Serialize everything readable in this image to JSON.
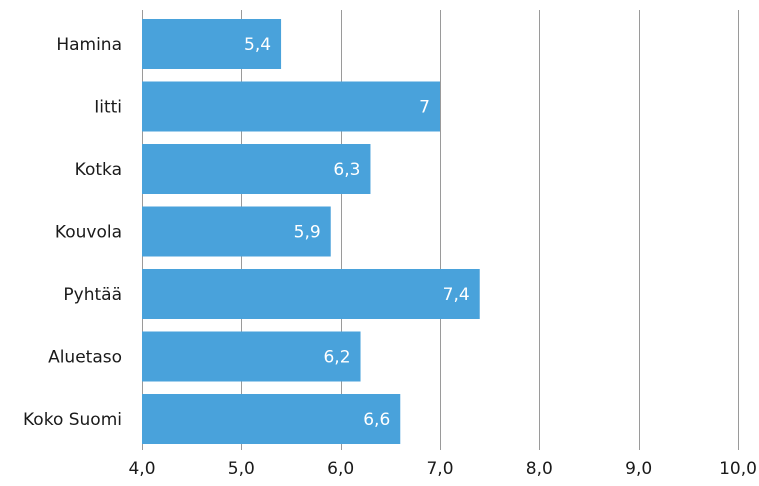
{
  "chart_data": {
    "type": "bar",
    "orientation": "horizontal",
    "categories": [
      "Hamina",
      "Iitti",
      "Kotka",
      "Kouvola",
      "Pyhtää",
      "Aluetaso",
      "Koko Suomi"
    ],
    "values": [
      5.4,
      7,
      6.3,
      5.9,
      7.4,
      6.2,
      6.6
    ],
    "value_labels": [
      "5,4",
      "7",
      "6,3",
      "5,9",
      "7,4",
      "6,2",
      "6,6"
    ],
    "xlim": [
      4.0,
      10.0
    ],
    "x_ticks": [
      4.0,
      5.0,
      6.0,
      7.0,
      8.0,
      9.0,
      10.0
    ],
    "x_tick_labels": [
      "4,0",
      "5,0",
      "6,0",
      "7,0",
      "8,0",
      "9,0",
      "10,0"
    ],
    "grid": "vertical",
    "legend": "none",
    "bar_color": "#49a2db",
    "grid_color": "#9a9a9a"
  }
}
